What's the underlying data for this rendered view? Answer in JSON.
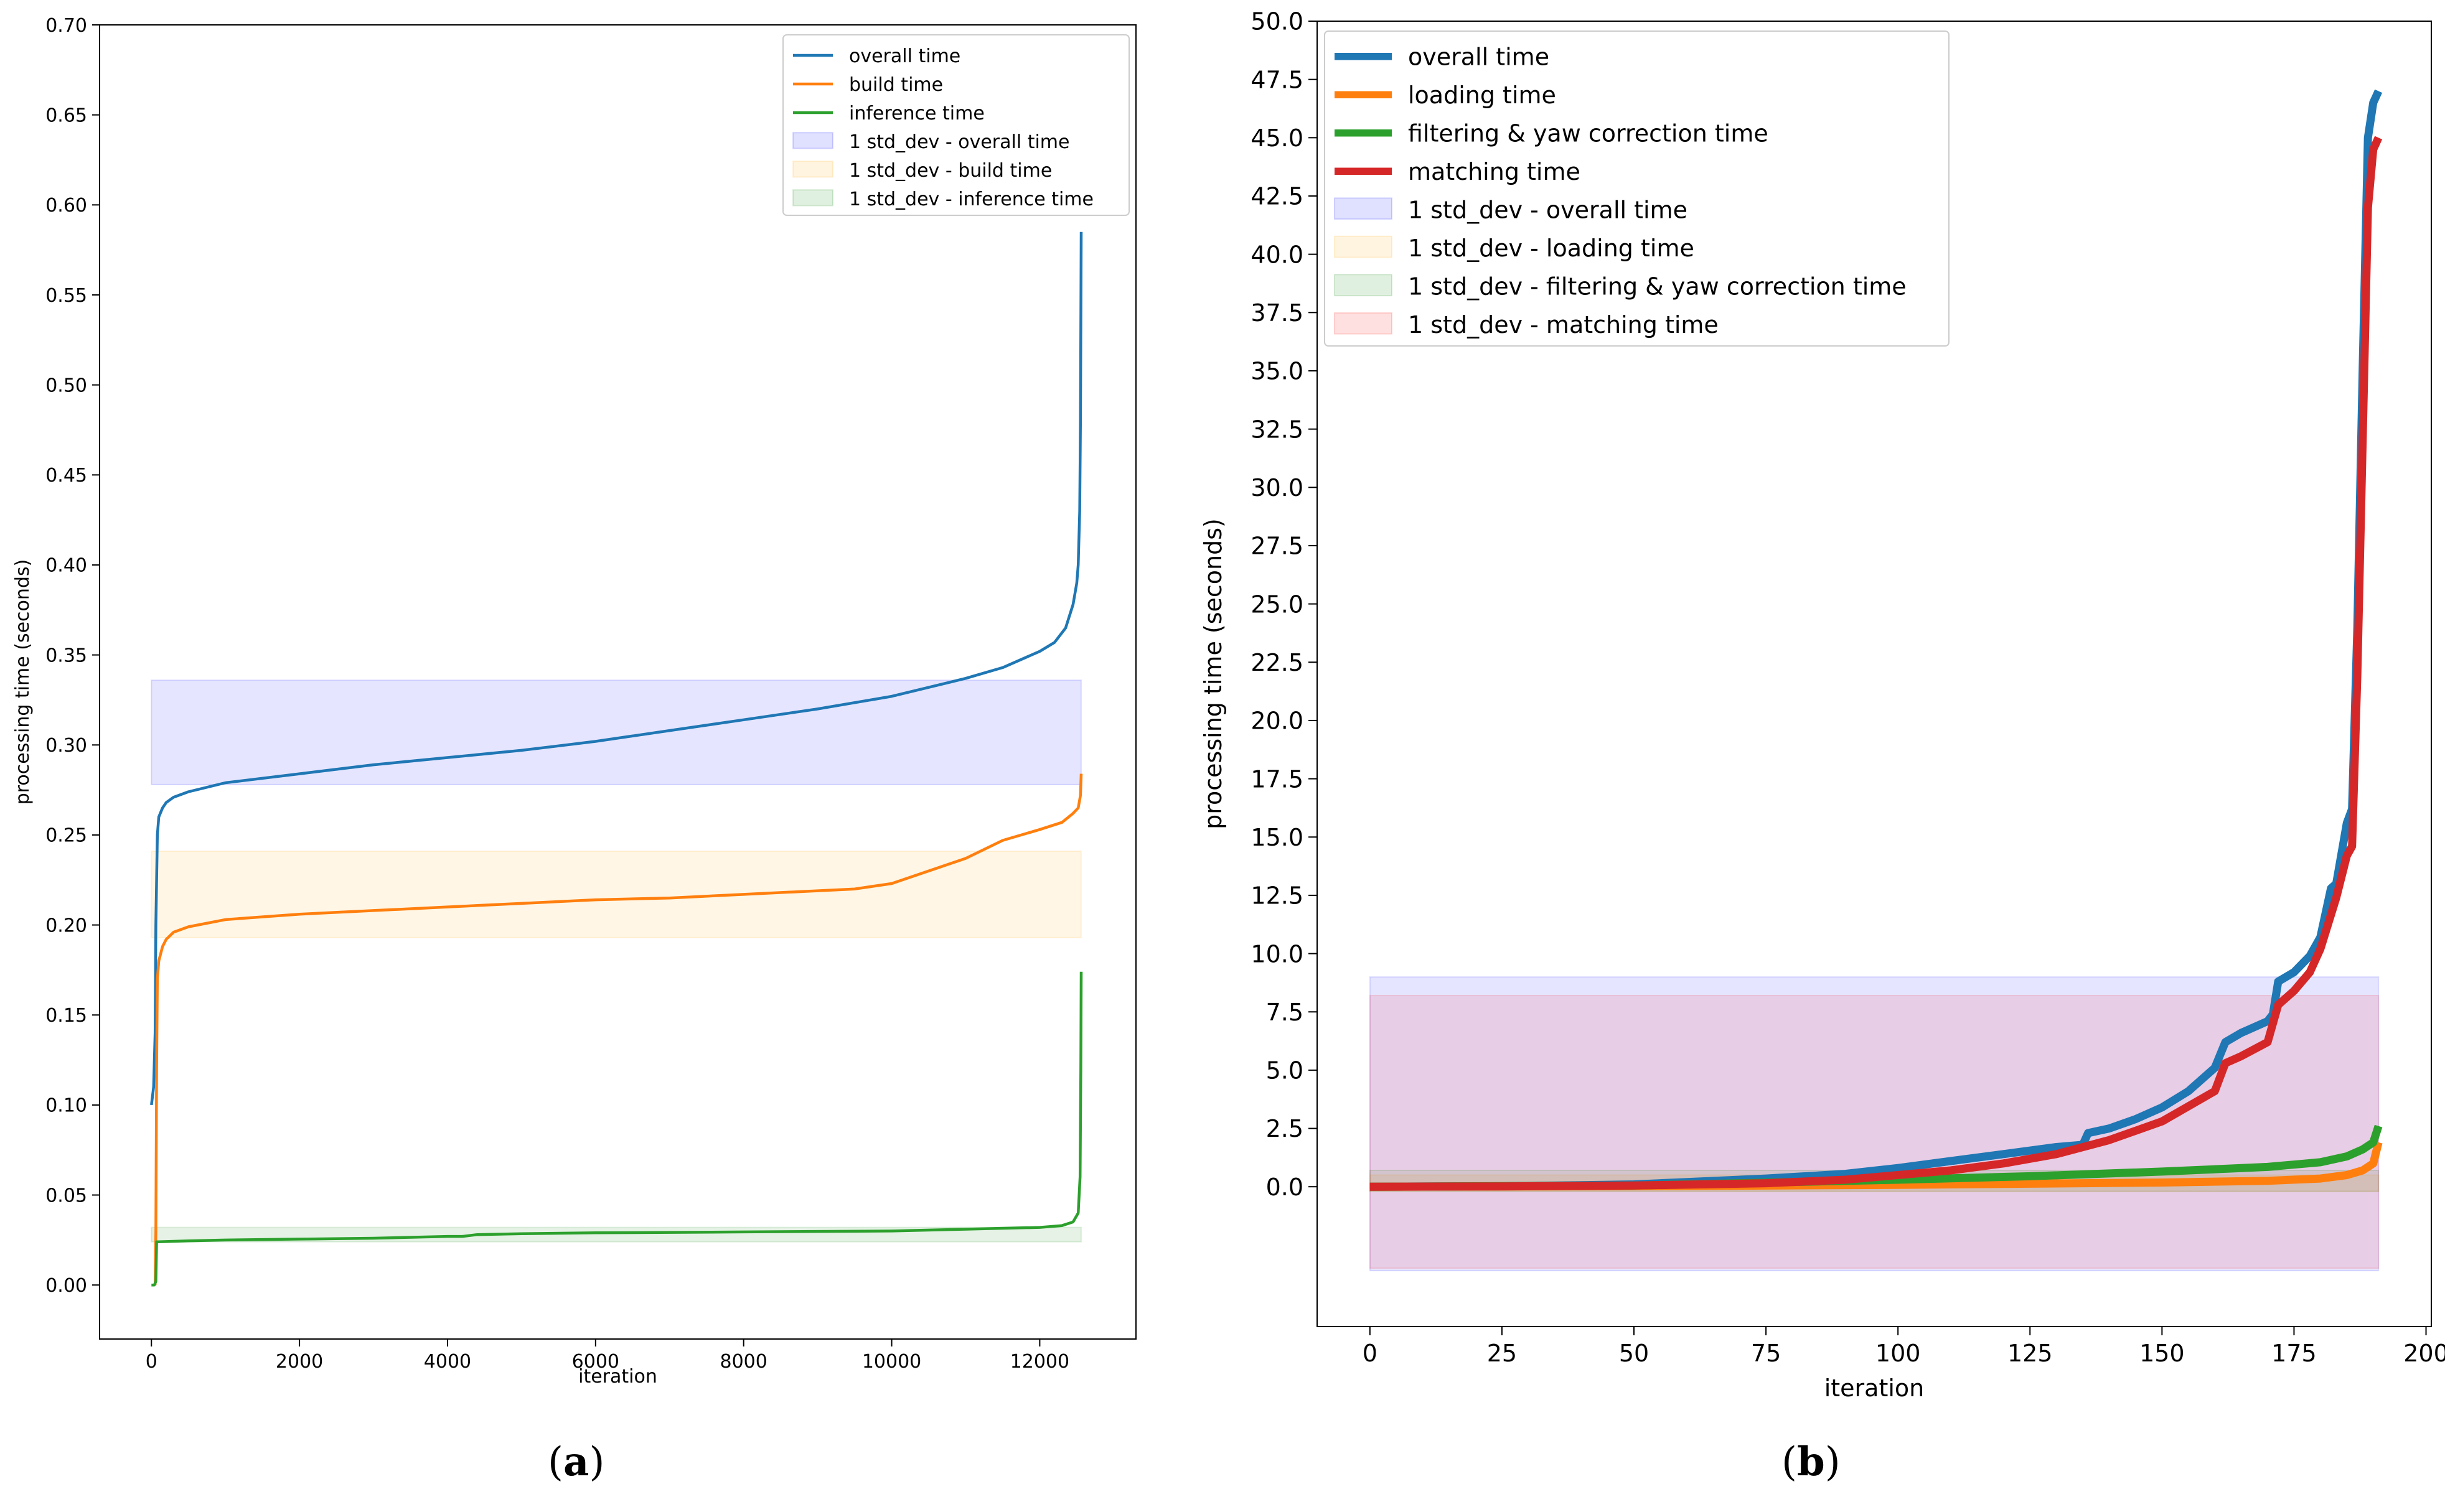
{
  "chart_data": [
    {
      "type": "line",
      "caption": "a",
      "xlabel": "iteration",
      "ylabel": "processing time (seconds)",
      "xlim": [
        -700,
        13300
      ],
      "ylim": [
        -0.03,
        0.7
      ],
      "xticks": [
        "0",
        "2000",
        "4000",
        "6000",
        "8000",
        "10000",
        "12000"
      ],
      "yticks": [
        "0.00",
        "0.05",
        "0.10",
        "0.15",
        "0.20",
        "0.25",
        "0.30",
        "0.35",
        "0.40",
        "0.45",
        "0.50",
        "0.55",
        "0.60",
        "0.65",
        "0.70"
      ],
      "legend_position": "top-right",
      "series": [
        {
          "name": "overall time",
          "color": "#1f77b4",
          "x": [
            0,
            30,
            50,
            60,
            80,
            100,
            150,
            200,
            300,
            500,
            1000,
            2000,
            3000,
            4000,
            5000,
            6000,
            7000,
            8000,
            9000,
            10000,
            11000,
            11500,
            12000,
            12200,
            12350,
            12450,
            12500,
            12520,
            12540,
            12550,
            12556,
            12560
          ],
          "y": [
            0.1,
            0.11,
            0.14,
            0.2,
            0.25,
            0.26,
            0.265,
            0.268,
            0.271,
            0.274,
            0.279,
            0.284,
            0.289,
            0.293,
            0.297,
            0.302,
            0.308,
            0.314,
            0.32,
            0.327,
            0.337,
            0.343,
            0.352,
            0.357,
            0.365,
            0.378,
            0.39,
            0.4,
            0.43,
            0.48,
            0.54,
            0.585
          ]
        },
        {
          "name": "build time",
          "color": "#ff7f0e",
          "x": [
            50,
            60,
            70,
            80,
            100,
            150,
            200,
            300,
            500,
            1000,
            2000,
            3000,
            4000,
            5000,
            6000,
            7000,
            8000,
            9000,
            9500,
            10000,
            10500,
            11000,
            11500,
            12000,
            12300,
            12450,
            12520,
            12550,
            12560
          ],
          "y": [
            0.0,
            0.03,
            0.12,
            0.17,
            0.18,
            0.188,
            0.192,
            0.196,
            0.199,
            0.203,
            0.206,
            0.208,
            0.21,
            0.212,
            0.214,
            0.215,
            0.217,
            0.219,
            0.22,
            0.223,
            0.23,
            0.237,
            0.247,
            0.253,
            0.257,
            0.262,
            0.265,
            0.272,
            0.284
          ]
        },
        {
          "name": "inference time",
          "color": "#2ca02c",
          "x": [
            0,
            40,
            60,
            70,
            100,
            500,
            1000,
            2000,
            3000,
            4000,
            4200,
            4400,
            5000,
            6000,
            8000,
            10000,
            11000,
            12000,
            12300,
            12450,
            12520,
            12545,
            12555,
            12560
          ],
          "y": [
            0.0,
            0.0,
            0.002,
            0.024,
            0.024,
            0.0245,
            0.025,
            0.0255,
            0.026,
            0.027,
            0.027,
            0.028,
            0.0285,
            0.029,
            0.0295,
            0.03,
            0.031,
            0.032,
            0.033,
            0.035,
            0.04,
            0.06,
            0.12,
            0.174
          ]
        },
        {
          "name": "1 std_dev - overall time",
          "kind": "band",
          "color": "#0000ff",
          "x": [
            0,
            12560
          ],
          "y": [
            0.278,
            0.336
          ]
        },
        {
          "name": "1 std_dev - build time",
          "kind": "band",
          "color": "#ffa500",
          "x": [
            0,
            12560
          ],
          "y": [
            0.193,
            0.241
          ]
        },
        {
          "name": "1 std_dev - inference time",
          "kind": "band",
          "color": "#008000",
          "x": [
            0,
            12560
          ],
          "y": [
            0.024,
            0.032
          ]
        }
      ]
    },
    {
      "type": "line",
      "caption": "b",
      "xlabel": "iteration",
      "ylabel": "processing time (seconds)",
      "xlim": [
        -10,
        201
      ],
      "ylim": [
        -6,
        50
      ],
      "xticks": [
        "0",
        "25",
        "50",
        "75",
        "100",
        "125",
        "150",
        "175",
        "200"
      ],
      "yticks": [
        "0.0",
        "2.5",
        "5.0",
        "7.5",
        "10.0",
        "12.5",
        "15.0",
        "17.5",
        "20.0",
        "22.5",
        "25.0",
        "27.5",
        "30.0",
        "32.5",
        "35.0",
        "37.5",
        "40.0",
        "42.5",
        "45.0",
        "47.5",
        "50.0"
      ],
      "legend_position": "top-left",
      "series": [
        {
          "name": "overall time",
          "color": "#1f77b4",
          "x": [
            0,
            25,
            50,
            75,
            90,
            100,
            110,
            120,
            130,
            135,
            136,
            140,
            145,
            150,
            155,
            160,
            162,
            165,
            170,
            171,
            172,
            175,
            178,
            180,
            182,
            183,
            185,
            186,
            187,
            188,
            189,
            190,
            191
          ],
          "y": [
            0,
            0.02,
            0.1,
            0.35,
            0.55,
            0.8,
            1.1,
            1.4,
            1.7,
            1.8,
            2.3,
            2.5,
            2.9,
            3.4,
            4.1,
            5.1,
            6.2,
            6.6,
            7.1,
            7.4,
            8.8,
            9.2,
            9.9,
            10.7,
            12.8,
            13.0,
            15.6,
            16.2,
            24,
            35,
            45,
            46.5,
            47
          ]
        },
        {
          "name": "loading time",
          "color": "#ff7f0e",
          "x": [
            0,
            50,
            100,
            150,
            170,
            180,
            185,
            188,
            190,
            191
          ],
          "y": [
            0,
            0.02,
            0.08,
            0.18,
            0.25,
            0.35,
            0.5,
            0.7,
            1.0,
            1.9
          ]
        },
        {
          "name": "filtering & yaw correction time",
          "color": "#2ca02c",
          "x": [
            0,
            50,
            100,
            125,
            150,
            170,
            180,
            185,
            188,
            190,
            191
          ],
          "y": [
            0,
            0.05,
            0.3,
            0.45,
            0.65,
            0.85,
            1.05,
            1.3,
            1.6,
            1.9,
            2.6
          ]
        },
        {
          "name": "matching time",
          "color": "#d62728",
          "x": [
            0,
            25,
            50,
            75,
            90,
            100,
            110,
            120,
            130,
            140,
            150,
            160,
            162,
            165,
            170,
            172,
            175,
            178,
            180,
            183,
            185,
            186,
            187,
            188,
            189,
            190,
            191
          ],
          "y": [
            0,
            0.01,
            0.05,
            0.15,
            0.3,
            0.5,
            0.7,
            1.0,
            1.4,
            2.0,
            2.8,
            4.1,
            5.3,
            5.6,
            6.2,
            7.8,
            8.4,
            9.2,
            10.2,
            12.4,
            14.2,
            14.6,
            22,
            32,
            42,
            44.5,
            45
          ]
        },
        {
          "name": "1 std_dev - overall time",
          "kind": "band",
          "color": "#0000ff",
          "x": [
            0,
            191
          ],
          "y": [
            -3.6,
            9.0
          ]
        },
        {
          "name": "1 std_dev - loading time",
          "kind": "band",
          "color": "#ffa500",
          "x": [
            0,
            191
          ],
          "y": [
            -0.2,
            0.5
          ]
        },
        {
          "name": "1 std_dev - filtering & yaw correction time",
          "kind": "band",
          "color": "#008000",
          "x": [
            0,
            191
          ],
          "y": [
            -0.2,
            0.7
          ]
        },
        {
          "name": "1 std_dev - matching time",
          "kind": "band",
          "color": "#ff0000",
          "x": [
            0,
            191
          ],
          "y": [
            -3.5,
            8.2
          ]
        }
      ]
    }
  ]
}
